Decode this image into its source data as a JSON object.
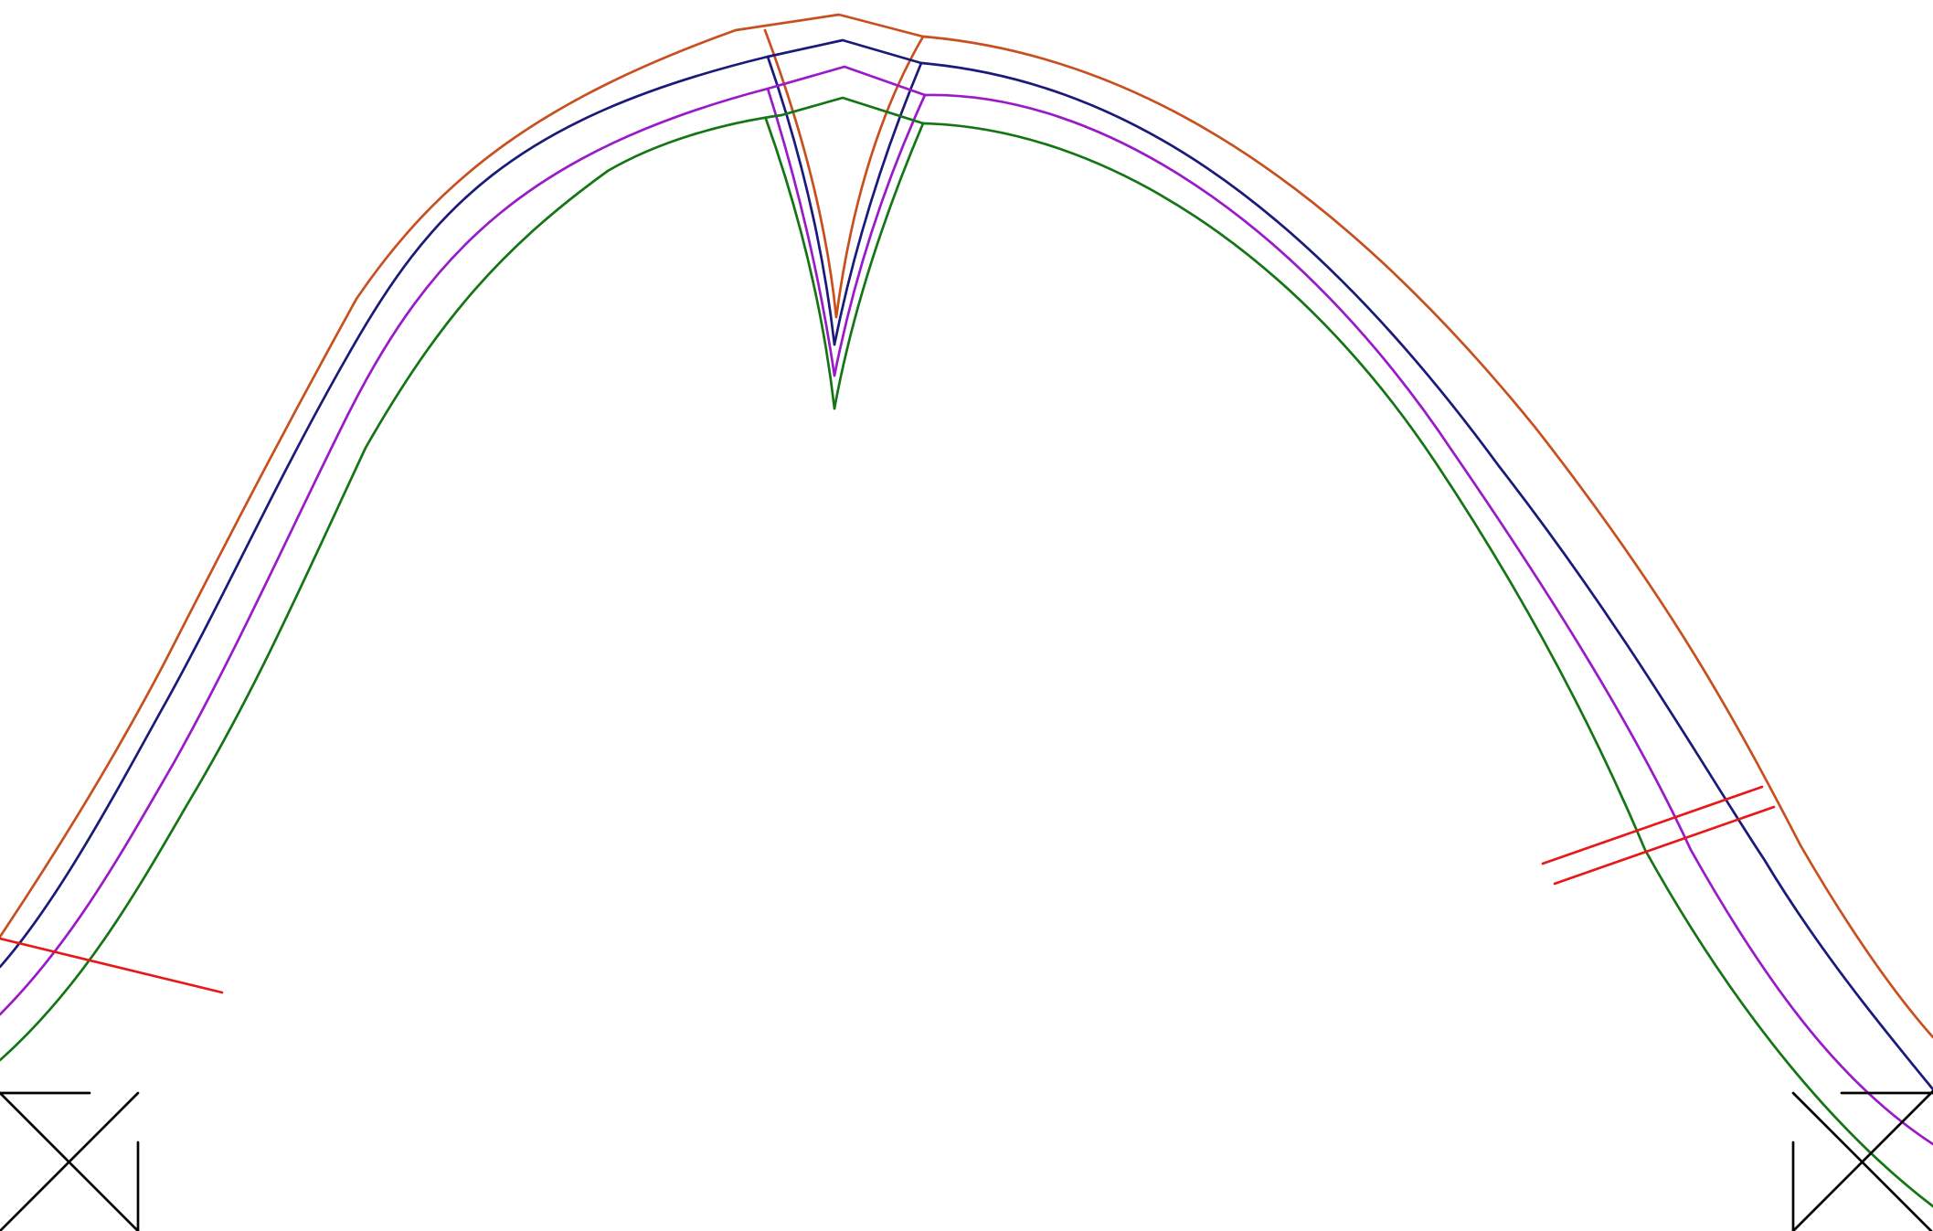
{
  "diagram": {
    "colors": {
      "background": "#ffffff",
      "profile_orange": "#c8501e",
      "profile_navy": "#1a1a7a",
      "profile_purple": "#9a1ac8",
      "profile_green": "#147514",
      "section_red": "#e81818",
      "support_black": "#000000"
    },
    "profiles": [
      {
        "key": "orange",
        "color_key": "profile_orange"
      },
      {
        "key": "navy",
        "color_key": "profile_navy"
      },
      {
        "key": "purple",
        "color_key": "profile_purple"
      },
      {
        "key": "green",
        "color_key": "profile_green"
      }
    ],
    "section_lines": {
      "count": 3,
      "color_key": "section_red"
    },
    "supports": {
      "count": 2,
      "color_key": "support_black"
    }
  }
}
